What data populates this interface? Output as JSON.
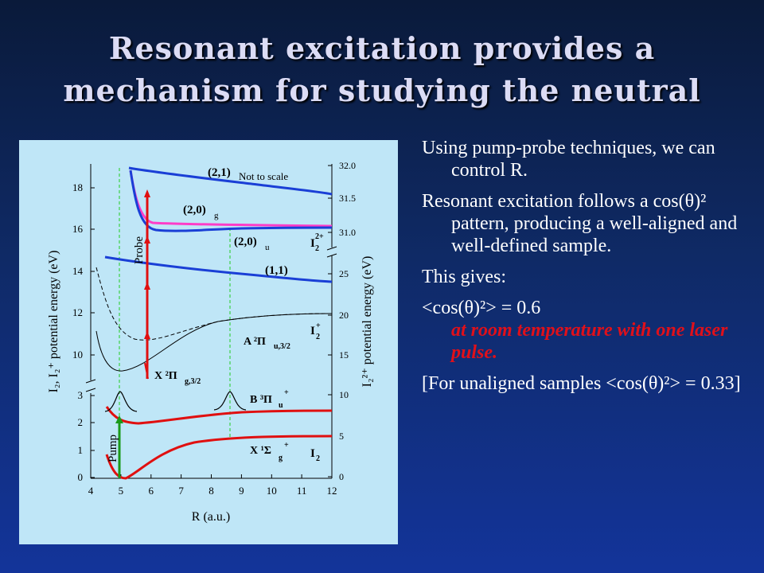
{
  "slide": {
    "title": "Resonant excitation provides a mechanism for studying the neutral"
  },
  "figure": {
    "xaxis": {
      "label": "R (a.u.)",
      "ticks": [
        "4",
        "5",
        "6",
        "7",
        "8",
        "9",
        "10",
        "11",
        "12"
      ]
    },
    "left_axis": {
      "label": "I₂, I₂⁺ potential energy (eV)",
      "upper_ticks": [
        "10",
        "12",
        "14",
        "16",
        "18"
      ],
      "lower_ticks": [
        "0",
        "1",
        "2",
        "3"
      ]
    },
    "right_axis": {
      "label": "I₂²⁺ potential energy (eV)",
      "upper_ticks": [
        "31.0",
        "31.5",
        "32.0"
      ],
      "mid_ticks": [
        "25"
      ],
      "lower_ticks": [
        "0",
        "5",
        "10",
        "15",
        "20"
      ]
    },
    "labels": {
      "state_21": "(2,1)",
      "not_to_scale": "Not to scale",
      "state_20g": "(2,0)",
      "state_20g_sub": "g",
      "state_20u": "(2,0)",
      "state_20u_sub": "u",
      "state_11": "(1,1)",
      "ion_I2": "I",
      "ion_I2_sup": "2+",
      "ion_I2_sub": "2",
      "probe": "Probe",
      "pump": "Pump",
      "A_state": "A ²Π",
      "A_sub": "u,3/2",
      "I_plus": "I",
      "I_plus_sup": "+",
      "I_plus_sub": "2",
      "X_plus": "X ²Π",
      "X_plus_sub": "g,3/2",
      "B_state": "B ³Π",
      "B_sub": "u",
      "B_sup": "+",
      "X_state": "X ¹Σ",
      "X_sub": "g",
      "X_sup": "+",
      "I_neutral": "I",
      "I_neutral_sub": "2"
    },
    "colors": {
      "background": "#bfe6f7",
      "dication": "#1a3fd6",
      "dication_20g": "#ff3cc8",
      "neutral": "#e01010",
      "probe_arrow": "#e01010",
      "pump_arrow": "#1a9a1a",
      "guide_lines": "#22cc22"
    }
  },
  "text": {
    "p1": "Using pump-probe techniques, we can control R.",
    "p2": "Resonant excitation follows a cos(θ)² pattern, producing a well-aligned and well-defined sample.",
    "p3": "This gives:",
    "p4_value": "<cos(θ)²> = 0.6",
    "p4_note": "at room temperature with one laser pulse.",
    "p5": "[For unaligned samples <cos(θ)²> = 0.33]"
  }
}
